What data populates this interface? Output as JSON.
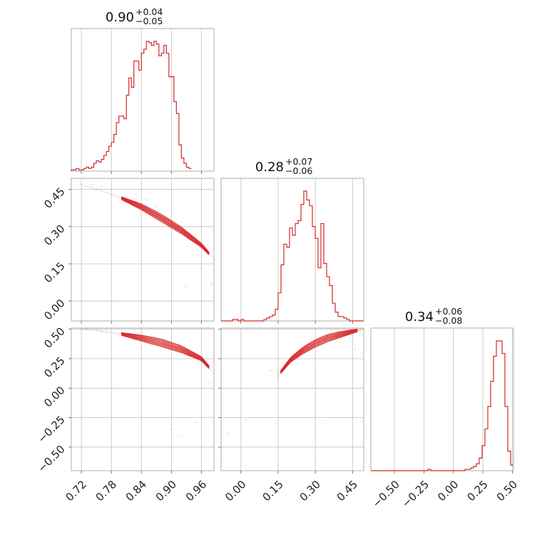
{
  "chart_data": {
    "type": "corner",
    "color": "#d62728",
    "parameters": [
      {
        "title_median": "0.90",
        "title_plus": "+0.04",
        "title_minus": "−0.05",
        "range": [
          0.7,
          0.985
        ],
        "ticks": [
          0.72,
          0.78,
          0.84,
          0.9,
          0.96
        ],
        "tick_labels": [
          "0.72",
          "0.78",
          "0.84",
          "0.90",
          "0.96"
        ],
        "hist": {
          "edges_start": 0.7,
          "bin_width": 0.005,
          "counts": [
            1,
            1,
            2,
            1,
            1,
            2,
            3,
            2,
            3,
            6,
            8,
            7,
            9,
            12,
            15,
            19,
            22,
            28,
            37,
            42,
            42,
            40,
            58,
            71,
            64,
            84,
            84,
            77,
            90,
            93,
            99,
            98,
            96,
            99,
            97,
            88,
            90,
            96,
            90,
            72,
            72,
            53,
            44,
            20,
            10,
            6,
            3,
            2
          ]
        }
      },
      {
        "title_median": "0.28",
        "title_plus": "+0.07",
        "title_minus": "−0.06",
        "range": [
          -0.08,
          0.495
        ],
        "ticks": [
          0.0,
          0.15,
          0.3,
          0.45
        ],
        "tick_labels": [
          "0.00",
          "0.15",
          "0.30",
          "0.45"
        ],
        "hist": {
          "edges_start": -0.08,
          "bin_width": 0.0115,
          "counts": [
            0,
            0,
            0,
            0,
            1,
            1,
            0,
            1,
            0,
            0,
            0,
            0,
            0,
            0,
            0,
            1,
            2,
            3,
            4,
            8,
            19,
            38,
            52,
            50,
            63,
            58,
            66,
            68,
            79,
            88,
            82,
            78,
            64,
            56,
            36,
            66,
            39,
            30,
            24,
            12,
            6,
            3,
            3,
            2,
            1,
            0,
            0,
            0,
            0,
            0
          ]
        }
      },
      {
        "title_median": "0.34",
        "title_plus": "+0.06",
        "title_minus": "−0.08",
        "range": [
          -0.7,
          0.51
        ],
        "ticks": [
          -0.5,
          -0.25,
          0.0,
          0.25,
          0.5
        ],
        "tick_labels": [
          "−0.50",
          "−0.25",
          "0.00",
          "0.25",
          "0.50"
        ],
        "hist": {
          "edges_start": -0.7,
          "bin_width": 0.0242,
          "counts": [
            0,
            0,
            0,
            0,
            0,
            0,
            0,
            0,
            0,
            0,
            0,
            0,
            0,
            0,
            0,
            0,
            0,
            0,
            0,
            0,
            1,
            0,
            0,
            0,
            0,
            0,
            0,
            0,
            0,
            0,
            0,
            0,
            0,
            1,
            1,
            2,
            3,
            5,
            9,
            18,
            30,
            46,
            64,
            82,
            93,
            93,
            84,
            46,
            14,
            4
          ]
        }
      }
    ],
    "pairs": [
      {
        "x_param": 0,
        "y_param": 1,
        "ridge": [
          [
            0.72,
            0.47
          ],
          [
            0.76,
            0.445
          ],
          [
            0.8,
            0.415
          ],
          [
            0.84,
            0.38
          ],
          [
            0.88,
            0.335
          ],
          [
            0.92,
            0.285
          ],
          [
            0.96,
            0.225
          ],
          [
            0.985,
            0.17
          ]
        ],
        "contour_offsets": [
          -0.014,
          -0.008,
          -0.003,
          0.003,
          0.008,
          0.014
        ],
        "contour_x_range": [
          0.8,
          0.975
        ],
        "outliers": [
          [
            0.74,
            0.47
          ],
          [
            0.76,
            0.465
          ],
          [
            0.78,
            0.43
          ],
          [
            0.8,
            0.42
          ],
          [
            0.83,
            0.43
          ],
          [
            0.85,
            0.41
          ],
          [
            0.93,
            0.06
          ],
          [
            0.96,
            0.13
          ],
          [
            0.98,
            0.07
          ],
          [
            0.78,
            0.45
          ],
          [
            0.87,
            0.38
          ]
        ]
      },
      {
        "x_param": 0,
        "y_param": 2,
        "ridge": [
          [
            0.72,
            0.5
          ],
          [
            0.76,
            0.485
          ],
          [
            0.8,
            0.46
          ],
          [
            0.84,
            0.425
          ],
          [
            0.88,
            0.385
          ],
          [
            0.92,
            0.33
          ],
          [
            0.96,
            0.25
          ],
          [
            0.985,
            0.13
          ]
        ],
        "contour_offsets": [
          -0.03,
          -0.018,
          -0.006,
          0.006,
          0.018,
          0.03
        ],
        "contour_x_range": [
          0.8,
          0.975
        ],
        "outliers": [
          [
            0.73,
            0.5
          ],
          [
            0.75,
            0.49
          ],
          [
            0.77,
            0.48
          ],
          [
            0.8,
            0.47
          ],
          [
            0.84,
            0.34
          ],
          [
            0.9,
            -0.35
          ],
          [
            0.92,
            -0.4
          ],
          [
            0.95,
            -0.29
          ],
          [
            0.975,
            0.05
          ],
          [
            0.76,
            0.48
          ]
        ]
      },
      {
        "x_param": 1,
        "y_param": 2,
        "ridge": [
          [
            0.15,
            0.11
          ],
          [
            0.2,
            0.24
          ],
          [
            0.25,
            0.32
          ],
          [
            0.3,
            0.38
          ],
          [
            0.35,
            0.425
          ],
          [
            0.4,
            0.455
          ],
          [
            0.45,
            0.48
          ],
          [
            0.49,
            0.5
          ]
        ],
        "contour_offsets": [
          -0.03,
          -0.018,
          -0.006,
          0.006,
          0.018,
          0.03
        ],
        "contour_x_range": [
          0.16,
          0.47
        ],
        "outliers": [
          [
            0.02,
            -0.27
          ],
          [
            -0.05,
            -0.39
          ],
          [
            0.14,
            -0.3
          ],
          [
            0.33,
            -0.3
          ],
          [
            0.12,
            0.15
          ],
          [
            0.15,
            0.1
          ],
          [
            0.46,
            0.33
          ],
          [
            0.48,
            0.49
          ],
          [
            0.44,
            0.47
          ]
        ]
      }
    ]
  }
}
